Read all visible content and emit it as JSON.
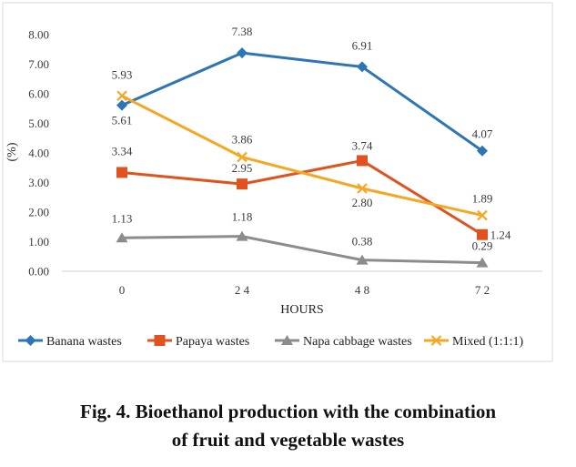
{
  "chart_data": {
    "type": "line",
    "categories": [
      "0",
      "24",
      "48",
      "72"
    ],
    "xlabel": "HOURS",
    "ylabel": "(%)",
    "ylim": [
      0,
      8
    ],
    "yticks": [
      "0.00",
      "1.00",
      "2.00",
      "3.00",
      "4.00",
      "5.00",
      "6.00",
      "7.00",
      "8.00"
    ],
    "grid": false,
    "legend_position": "bottom",
    "series": [
      {
        "name": "Banana wastes",
        "values": [
          5.61,
          7.38,
          6.91,
          4.07
        ],
        "labels": [
          "5.61",
          "7.38",
          "6.91",
          "4.07"
        ],
        "color": "#2e75b6",
        "marker": "diamond"
      },
      {
        "name": "Papaya wastes",
        "values": [
          3.34,
          2.95,
          3.74,
          1.24
        ],
        "labels": [
          "3.34",
          "2.95",
          "3.74",
          "1.24"
        ],
        "color": "#e0531f",
        "marker": "square"
      },
      {
        "name": "Napa cabbage wastes",
        "values": [
          1.13,
          1.18,
          0.38,
          0.29
        ],
        "labels": [
          "1.13",
          "1.18",
          "0.38",
          "0.29"
        ],
        "color": "#8c8c8c",
        "marker": "triangle"
      },
      {
        "name": "Mixed (1:1:1)",
        "values": [
          5.93,
          3.86,
          2.8,
          1.89
        ],
        "labels": [
          "5.93",
          "3.86",
          "2.80",
          "1.89"
        ],
        "color": "#f5a623",
        "marker": "x"
      }
    ]
  },
  "caption": {
    "line1": "Fig. 4. Bioethanol production with the combination",
    "line2": "of fruit and vegetable wastes"
  }
}
